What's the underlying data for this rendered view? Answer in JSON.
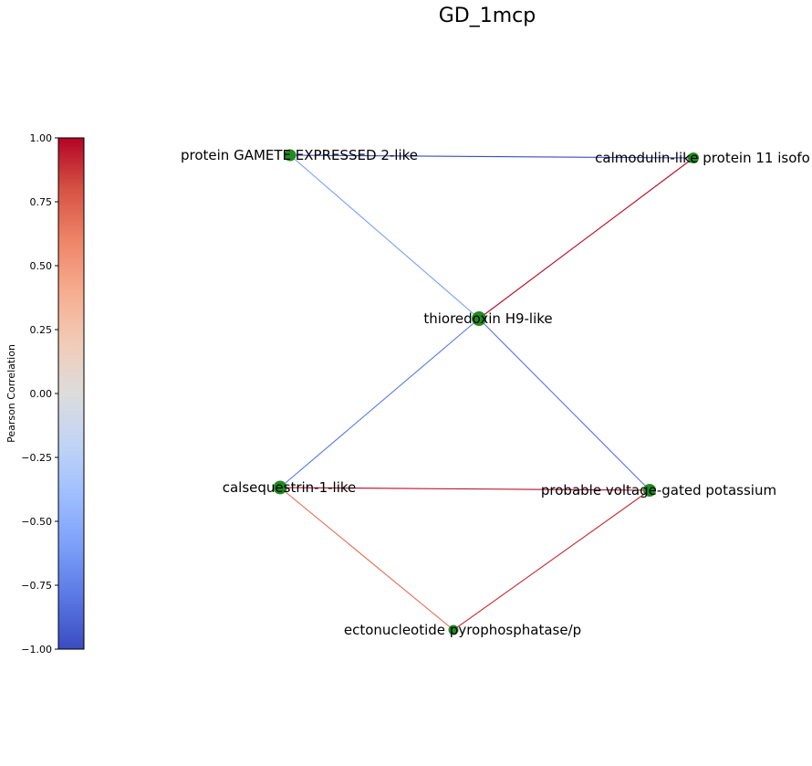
{
  "title": "GD_1mcp",
  "colorbar": {
    "label": "Pearson Correlation",
    "min": -1.0,
    "max": 1.0,
    "ticks": [
      "1.00",
      "0.75",
      "0.50",
      "0.25",
      "0.00",
      "−0.25",
      "−0.50",
      "−0.75",
      "−1.00"
    ],
    "tick_values": [
      1.0,
      0.75,
      0.5,
      0.25,
      0.0,
      -0.25,
      -0.5,
      -0.75,
      -1.0
    ],
    "colormap": "coolwarm",
    "colors": [
      "#3b4cc0",
      "#5977e3",
      "#7b9ff9",
      "#9ebeff",
      "#c0d4f5",
      "#dddcdc",
      "#f2cbb7",
      "#f7ac8e",
      "#ee8468",
      "#d65244",
      "#b40426"
    ]
  },
  "graph": {
    "node_color": "#228b22",
    "nodes": [
      {
        "id": "gamete",
        "label": "protein GAMETE EXPRESSED 2-like"
      },
      {
        "id": "calmodulin",
        "label": "calmodulin-like protein 11 isofo"
      },
      {
        "id": "thioredoxin",
        "label": "thioredoxin H9-like"
      },
      {
        "id": "calsequestrin",
        "label": "calsequestrin-1-like"
      },
      {
        "id": "potassium",
        "label": "probable voltage-gated potassium"
      },
      {
        "id": "ecto",
        "label": "ectonucleotide pyrophosphatase/p"
      }
    ],
    "edges": [
      {
        "source": "gamete",
        "target": "calmodulin",
        "weight": -1.0
      },
      {
        "source": "gamete",
        "target": "thioredoxin",
        "weight": -0.6
      },
      {
        "source": "calmodulin",
        "target": "thioredoxin",
        "weight": 0.98
      },
      {
        "source": "thioredoxin",
        "target": "calsequestrin",
        "weight": -0.8
      },
      {
        "source": "thioredoxin",
        "target": "potassium",
        "weight": -0.82
      },
      {
        "source": "calsequestrin",
        "target": "potassium",
        "weight": 1.0
      },
      {
        "source": "calsequestrin",
        "target": "ecto",
        "weight": 0.7
      },
      {
        "source": "potassium",
        "target": "ecto",
        "weight": 0.9
      }
    ]
  }
}
